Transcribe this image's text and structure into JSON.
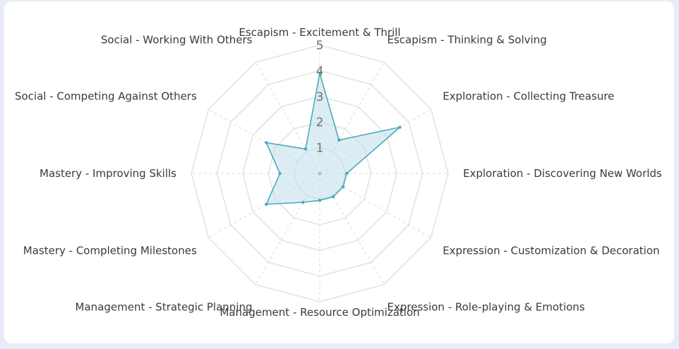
{
  "chart_data": {
    "type": "radar",
    "categories": [
      "Escapism - Excitement & Thrill",
      "Escapism - Thinking & Solving",
      "Exploration - Collecting Treasure",
      "Exploration - Discovering New Worlds",
      "Expression - Customization & Decoration",
      "Expression - Role-playing & Emotions",
      "Management - Resource Optimization",
      "Management - Strategic Planning",
      "Mastery - Completing Milestones",
      "Mastery - Improving Skills",
      "Social - Competing Against Others",
      "Social - Working With Others"
    ],
    "values": [
      3.9,
      1.5,
      3.6,
      1.05,
      1.05,
      1.05,
      1.05,
      1.3,
      2.4,
      1.55,
      2.4,
      1.1
    ],
    "rlim": [
      0,
      5
    ],
    "ticks": [
      "1",
      "2",
      "3",
      "4",
      "5"
    ],
    "grid": true,
    "colors": {
      "series_line": "#4ea8c2",
      "series_fill": "#bfe0ea",
      "grid": "#e3e3e3",
      "spoke": "#dadada"
    }
  }
}
